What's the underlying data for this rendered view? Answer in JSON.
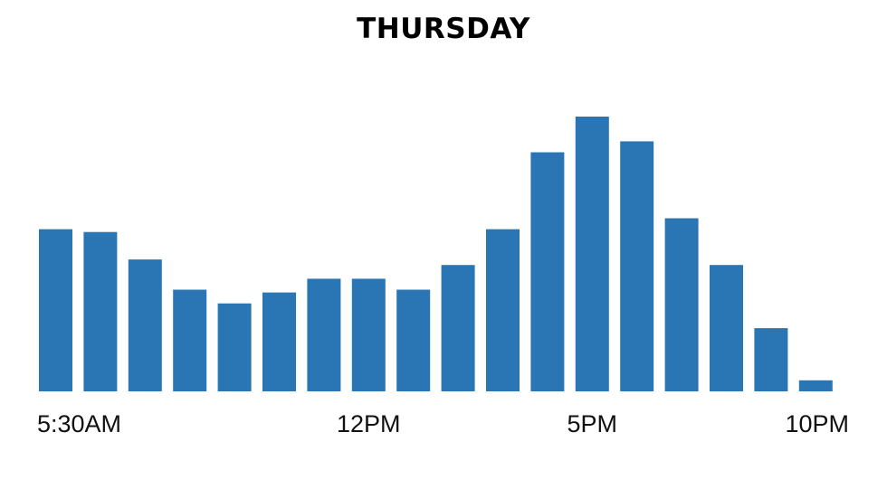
{
  "chart_data": {
    "type": "bar",
    "title": "THURSDAY",
    "xlabel": "",
    "ylabel": "",
    "color": "#2a76b5",
    "ylim": [
      0,
      100
    ],
    "grid": false,
    "legend": "none",
    "tick_labels": [
      {
        "label": "5:30AM",
        "category_index": 0
      },
      {
        "label": "12PM",
        "category_index": 7
      },
      {
        "label": "5PM",
        "category_index": 12
      },
      {
        "label": "10PM",
        "category_index": 17
      }
    ],
    "values": [
      59,
      58,
      48,
      37,
      32,
      36,
      41,
      41,
      37,
      46,
      59,
      87,
      100,
      91,
      63,
      46,
      23,
      4
    ]
  }
}
